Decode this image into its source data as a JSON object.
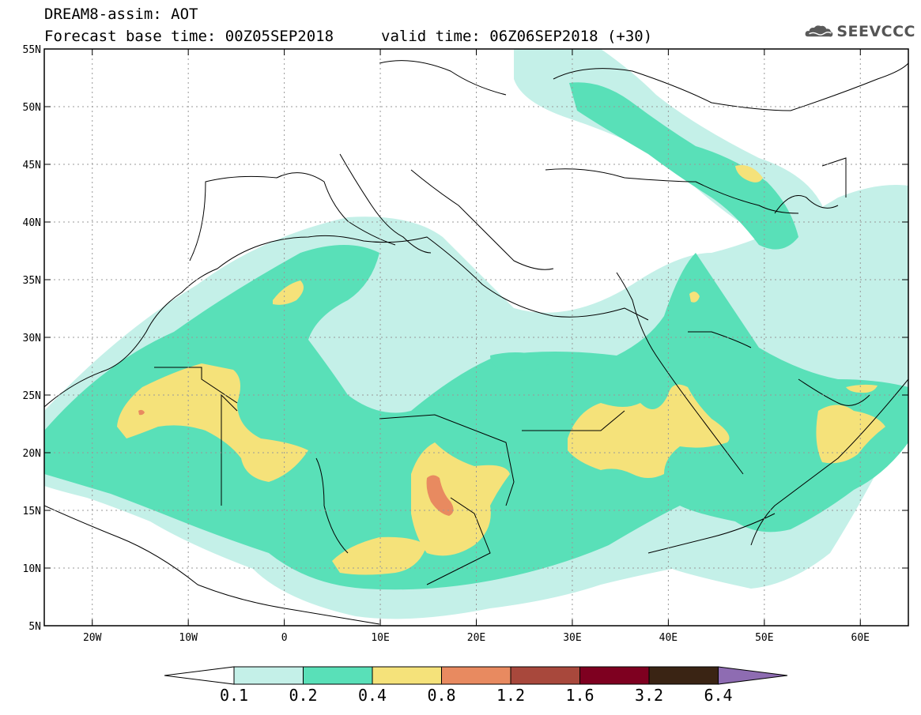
{
  "header": {
    "title_line1": "DREAM8-assim: AOT",
    "title_line2": "Forecast base time: 00Z05SEP2018",
    "title_line2b": "valid time: 06Z06SEP2018 (+30)",
    "logo_text": "SEEVCCC",
    "logo_icon": "cloud-icon"
  },
  "map": {
    "lon_range": [
      -25,
      65
    ],
    "lat_range": [
      5,
      55
    ],
    "lat_labels": [
      "55N",
      "50N",
      "45N",
      "40N",
      "35N",
      "30N",
      "25N",
      "20N",
      "15N",
      "10N",
      "5N"
    ],
    "lat_values": [
      55,
      50,
      45,
      40,
      35,
      30,
      25,
      20,
      15,
      10,
      5
    ],
    "lon_labels": [
      "20W",
      "10W",
      "0",
      "10E",
      "20E",
      "30E",
      "40E",
      "50E",
      "60E"
    ],
    "lon_values": [
      -20,
      -10,
      0,
      10,
      20,
      30,
      40,
      50,
      60
    ],
    "grid": "dotted"
  },
  "colorbar": {
    "tick_labels": [
      "0.1",
      "0.2",
      "0.4",
      "0.8",
      "1.2",
      "1.6",
      "3.2",
      "6.4"
    ],
    "colors": [
      "#ffffff",
      "#c4f0e8",
      "#59e0b8",
      "#f5e27a",
      "#e88a60",
      "#a8483c",
      "#7e0020",
      "#3a2414",
      "#8e6cb2"
    ]
  },
  "palette": {
    "c1": "#c4f0e8",
    "c2": "#59e0b8",
    "c3": "#f5e27a",
    "c4": "#e88a60"
  }
}
